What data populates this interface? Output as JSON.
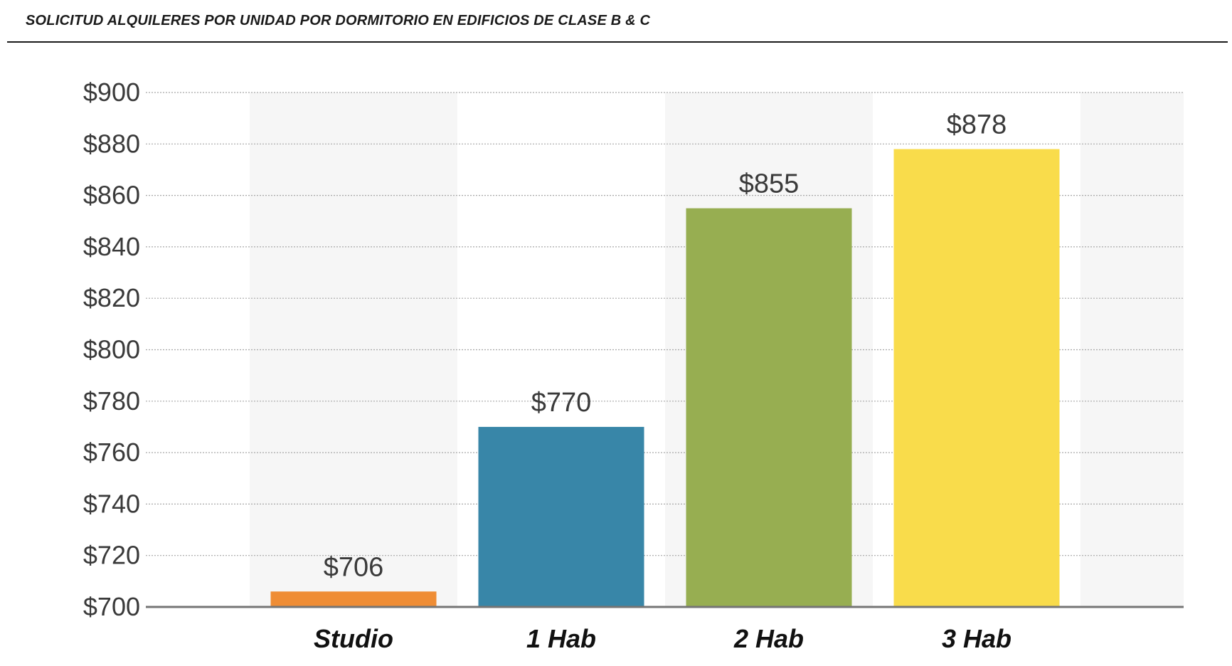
{
  "chart_data": {
    "type": "bar",
    "title": "SOLICITUD ALQUILERES POR UNIDAD POR DORMITORIO EN EDIFICIOS DE CLASE B & C",
    "categories": [
      "Studio",
      "1 Hab",
      "2 Hab",
      "3 Hab"
    ],
    "values": [
      706,
      770,
      855,
      878
    ],
    "value_labels": [
      "$706",
      "$770",
      "$855",
      "$878"
    ],
    "colors": [
      "#ef8d35",
      "#3886a8",
      "#97ae51",
      "#f9dc4b"
    ],
    "ylim": [
      700,
      900
    ],
    "yticks": [
      700,
      720,
      740,
      760,
      780,
      800,
      820,
      840,
      860,
      880,
      900
    ],
    "ytick_labels": [
      "$700",
      "$720",
      "$740",
      "$760",
      "$780",
      "$800",
      "$820",
      "$840",
      "$860",
      "$880",
      "$900"
    ],
    "grid": true,
    "legend": "none"
  }
}
